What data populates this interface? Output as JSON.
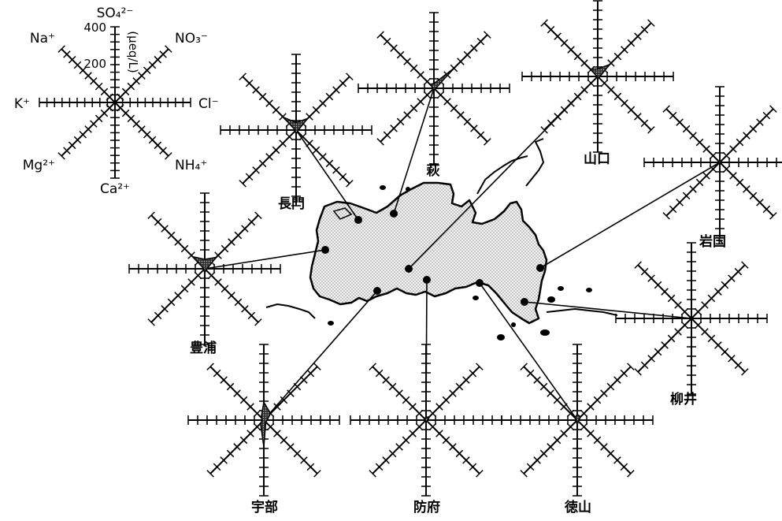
{
  "legend": {
    "ions": {
      "top": "SO₄²⁻",
      "top_right": "NO₃⁻",
      "right": "Cl⁻",
      "bottom_right": "NH₄⁺",
      "bottom": "Ca²⁺",
      "bottom_left": "Mg²⁺",
      "left": "K⁺",
      "top_left": "Na⁺"
    },
    "scale_ticks": [
      "400",
      "200"
    ],
    "unit": "(μeq/L)"
  },
  "stations": [
    {
      "id": "nagato",
      "name": "長門"
    },
    {
      "id": "hagi",
      "name": "萩"
    },
    {
      "id": "yamaguchi",
      "name": "山口"
    },
    {
      "id": "iwakuni",
      "name": "岩国"
    },
    {
      "id": "yanai",
      "name": "柳井"
    },
    {
      "id": "tokuyama",
      "name": "徳山"
    },
    {
      "id": "hofu",
      "name": "防府"
    },
    {
      "id": "ube",
      "name": "宇部"
    },
    {
      "id": "toyoura",
      "name": "豊浦"
    }
  ],
  "profiles": {
    "nagato": [
      40,
      85,
      12,
      10,
      22,
      8,
      5,
      95
    ],
    "hagi": [
      25,
      150,
      10,
      8,
      14,
      6,
      4,
      30
    ],
    "yamaguchi": [
      40,
      90,
      12,
      8,
      15,
      6,
      4,
      55
    ],
    "iwakuni": [
      10,
      12,
      6,
      6,
      8,
      6,
      4,
      8
    ],
    "yanai": [
      4,
      4,
      3,
      3,
      3,
      3,
      3,
      3
    ],
    "tokuyama": [
      30,
      25,
      10,
      8,
      25,
      8,
      5,
      18
    ],
    "hofu": [
      15,
      25,
      10,
      8,
      12,
      6,
      4,
      12
    ],
    "ube": [
      95,
      50,
      18,
      15,
      140,
      25,
      8,
      20
    ],
    "toyoura": [
      50,
      85,
      12,
      10,
      22,
      8,
      5,
      90
    ]
  },
  "map_colors": {
    "land_fill": "#e6e6e6",
    "stroke": "#000000",
    "star_fill": "#555555"
  }
}
